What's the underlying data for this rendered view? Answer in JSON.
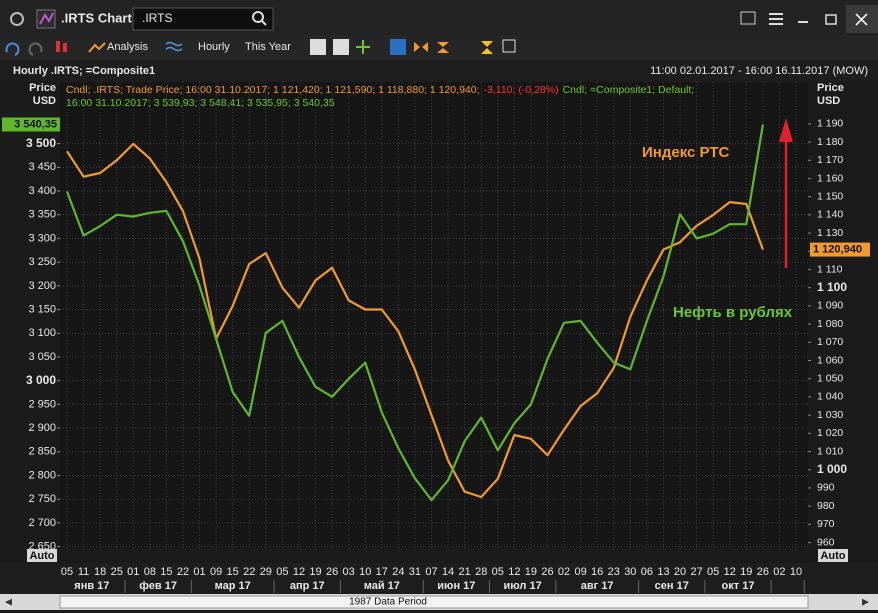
{
  "window": {
    "title": ".IRTS Chart",
    "search": ".IRTS"
  },
  "toolbar": {
    "analysis": "Analysis",
    "interval": "Hourly",
    "range": "This Year"
  },
  "header": {
    "title": "Hourly .IRTS; =Composite1",
    "period": "11:00 02.01.2017 - 16:00 16.11.2017 (MOW)"
  },
  "legend": {
    "irts": "Cndl; .IRTS; Trade Price; 16:00 31.10.2017; 1 121,420; 1 121,590; 1 118,880; 1 120,940;",
    "irts_change": "-3,110; (-0,28%)",
    "composite": "Cndl; =Composite1; Default;",
    "composite_values": "16:00 31.10.2017; 3 539,93; 3 548,41; 3 535,95; 3 540,35"
  },
  "chart_data": {
    "type": "line",
    "y_label": [
      "Price",
      "USD"
    ],
    "y2_label": [
      "Price",
      "USD"
    ],
    "auto": "Auto",
    "annotations": [
      {
        "text": "Индекс РТС",
        "color": "#f39a2e"
      },
      {
        "text": "Нефть в рублях",
        "color": "#6cc72f"
      }
    ],
    "categories": [
      "05",
      "11",
      "18",
      "25",
      "01",
      "08",
      "15",
      "22",
      "01",
      "09",
      "15",
      "22",
      "29",
      "05",
      "12",
      "19",
      "26",
      "03",
      "10",
      "17",
      "24",
      "31",
      "07",
      "14",
      "21",
      "28",
      "05",
      "12",
      "19",
      "26",
      "02",
      "09",
      "16",
      "23",
      "30",
      "06",
      "13",
      "20",
      "27",
      "05",
      "12",
      "19",
      "26",
      "02",
      "10"
    ],
    "months": [
      "янв 17",
      "фев 17",
      "мар 17",
      "апр 17",
      "май 17",
      "июн 17",
      "июл 17",
      "авг 17",
      "сен 17",
      "окт 17",
      null
    ],
    "series": [
      {
        "color": "#f39a2e",
        "axis": "y2",
        "values": [
          1175,
          1161,
          1163,
          1170,
          1179,
          1171,
          1158,
          1142,
          1116,
          1072,
          1090,
          1113,
          1119,
          1100,
          1089,
          1104,
          1111,
          1093,
          1088,
          1088,
          1076,
          1055,
          1030,
          1005,
          988,
          985,
          995,
          1019,
          1017,
          1008,
          1022,
          1035,
          1042,
          1056,
          1084,
          1104,
          1121,
          1125,
          1134,
          1140,
          1147,
          1146,
          1120.94,
          null,
          null
        ],
        "last_value": {
          "value": 1120.94,
          "label": "1 120,940"
        }
      },
      {
        "color": "#5fb82a",
        "axis": "y",
        "values": [
          3399,
          3306,
          3326,
          3350,
          3346,
          3354,
          3358,
          3294,
          3200,
          3088,
          2976,
          2926,
          3101,
          3126,
          3050,
          2987,
          2966,
          3004,
          3038,
          2933,
          2857,
          2794,
          2748,
          2790,
          2872,
          2922,
          2853,
          2910,
          2950,
          3046,
          3122,
          3126,
          3080,
          3038,
          3024,
          3126,
          3220,
          3351,
          3300,
          3310,
          3330,
          3330,
          3540.35,
          null,
          null
        ],
        "last_value": {
          "value": 3540.35,
          "label": "3 540,35"
        }
      }
    ],
    "ylim": [
      2647,
      3630
    ],
    "yticks": [
      {
        "value": 2650,
        "label": "2 650"
      },
      {
        "value": 2700,
        "label": "2 700"
      },
      {
        "value": 2750,
        "label": "2 750"
      },
      {
        "value": 2800,
        "label": "2 800"
      },
      {
        "value": 2850,
        "label": "2 850"
      },
      {
        "value": 2900,
        "label": "2 900"
      },
      {
        "value": 2950,
        "label": "2 950"
      },
      {
        "value": 3000,
        "label": "3 000"
      },
      {
        "value": 3050,
        "label": "3 050"
      },
      {
        "value": 3100,
        "label": "3 100"
      },
      {
        "value": 3150,
        "label": "3 150"
      },
      {
        "value": 3200,
        "label": "3 200"
      },
      {
        "value": 3250,
        "label": "3 250"
      },
      {
        "value": 3300,
        "label": "3 300"
      },
      {
        "value": 3350,
        "label": "3 350"
      },
      {
        "value": 3400,
        "label": "3 400"
      },
      {
        "value": 3450,
        "label": "3 450"
      },
      {
        "value": 3500,
        "label": "3 500"
      }
    ],
    "y2lim": [
      957,
      1213
    ],
    "y2ticks": [
      960,
      970,
      980,
      990,
      {
        "value": 1000,
        "label": "1 000"
      },
      {
        "value": 1010,
        "label": "1 010"
      },
      {
        "value": 1020,
        "label": "1 020"
      },
      {
        "value": 1030,
        "label": "1 030"
      },
      {
        "value": 1040,
        "label": "1 040"
      },
      {
        "value": 1050,
        "label": "1 050"
      },
      {
        "value": 1060,
        "label": "1 060"
      },
      {
        "value": 1070,
        "label": "1 070"
      },
      {
        "value": 1080,
        "label": "1 080"
      },
      {
        "value": 1090,
        "label": "1 090"
      },
      {
        "value": 1100,
        "label": "1 100"
      },
      {
        "value": 1110,
        "label": "1 110"
      },
      {
        "value": 1120,
        "label": "1 120"
      },
      {
        "value": 1130,
        "label": "1 130"
      },
      {
        "value": 1140,
        "label": "1 140"
      },
      {
        "value": 1150,
        "label": "1 150"
      },
      {
        "value": 1160,
        "label": "1 160"
      },
      {
        "value": 1170,
        "label": "1 170"
      },
      {
        "value": 1180,
        "label": "1 180"
      },
      {
        "value": 1190,
        "label": "1 190"
      }
    ],
    "grid": true
  },
  "scrollbar": "1987 Data Period"
}
